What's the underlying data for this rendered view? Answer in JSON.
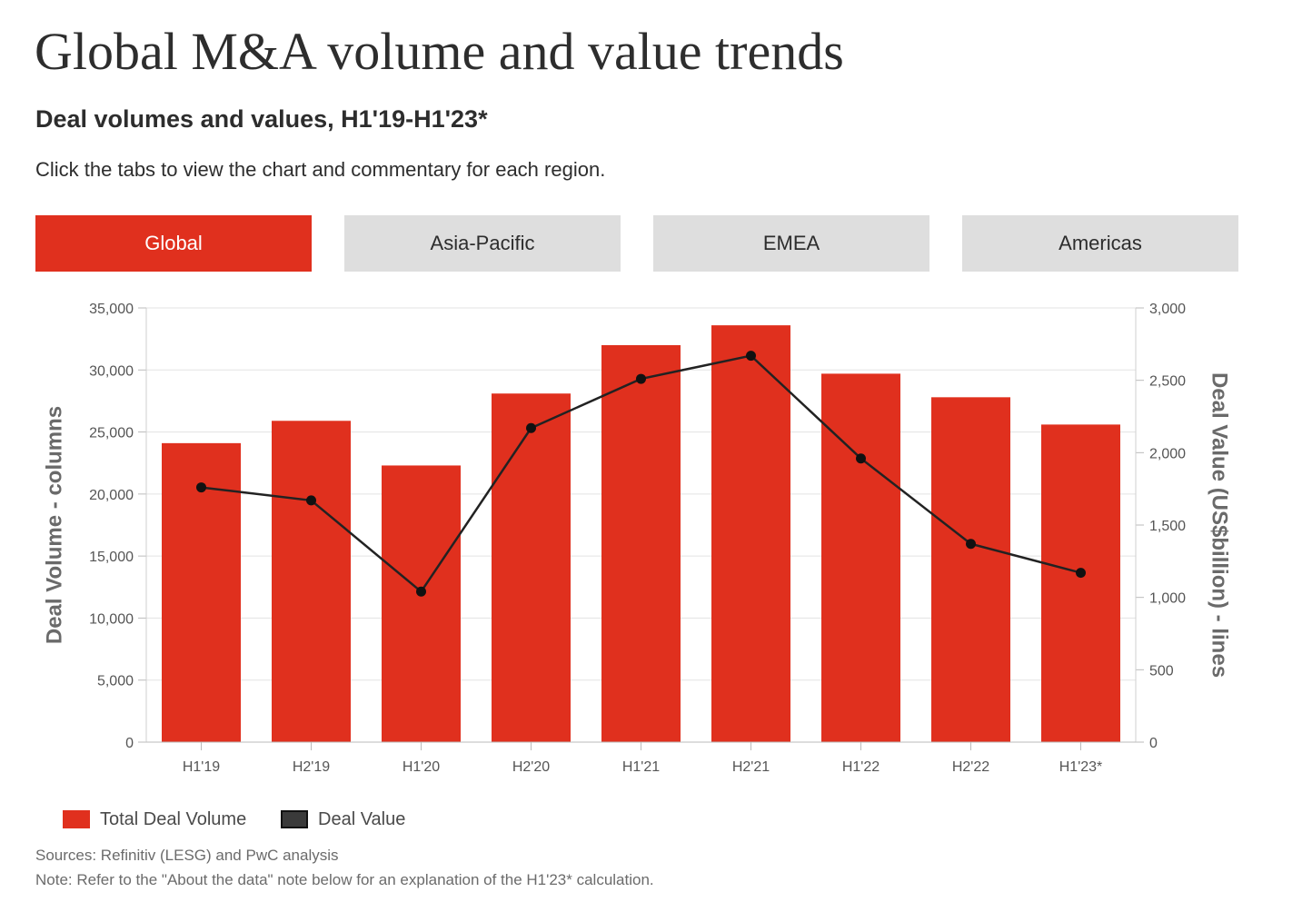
{
  "header": {
    "title": "Global M&A volume and value trends",
    "subtitle": "Deal volumes and values, H1'19-H1'23*",
    "instructions": "Click the tabs to view the chart and commentary for each region."
  },
  "tabs": [
    {
      "label": "Global",
      "active": true
    },
    {
      "label": "Asia-Pacific",
      "active": false
    },
    {
      "label": "EMEA",
      "active": false
    },
    {
      "label": "Americas",
      "active": false
    }
  ],
  "colors": {
    "accent": "#e0301e",
    "tab_inactive": "#dedede",
    "line": "#222222",
    "grid": "#e3e3e3"
  },
  "chart_data": {
    "type": "bar",
    "categories": [
      "H1'19",
      "H2'19",
      "H1'20",
      "H2'20",
      "H1'21",
      "H2'21",
      "H1'22",
      "H2'22",
      "H1'23*"
    ],
    "series": [
      {
        "name": "Total Deal Volume",
        "chart_type": "bar",
        "axis": "left",
        "color": "#e0301e",
        "values": [
          24100,
          25900,
          22300,
          28100,
          32000,
          33600,
          29700,
          27800,
          25600
        ]
      },
      {
        "name": "Deal Value",
        "chart_type": "line",
        "axis": "right",
        "color": "#222222",
        "values": [
          1760,
          1670,
          1040,
          2170,
          2510,
          2670,
          1960,
          1370,
          1170
        ]
      }
    ],
    "y_left": {
      "label": "Deal Volume - columns",
      "min": 0,
      "max": 35000,
      "ticks": [
        0,
        5000,
        10000,
        15000,
        20000,
        25000,
        30000,
        35000
      ],
      "tick_labels": [
        "0",
        "5,000",
        "10,000",
        "15,000",
        "20,000",
        "25,000",
        "30,000",
        "35,000"
      ]
    },
    "y_right": {
      "label": "Deal Value (US$billion) - lines",
      "min": 0,
      "max": 3000,
      "ticks": [
        0,
        500,
        1000,
        1500,
        2000,
        2500,
        3000
      ],
      "tick_labels": [
        "0",
        "500",
        "1,000",
        "1,500",
        "2,000",
        "2,500",
        "3,000"
      ]
    },
    "grid": true,
    "legend_position": "bottom-left"
  },
  "legend": [
    {
      "label": "Total Deal Volume"
    },
    {
      "label": "Deal Value"
    }
  ],
  "footer": {
    "sources": "Sources: Refinitiv (LESG) and PwC analysis",
    "note": "Note: Refer to the \"About the data\" note below for an explanation of the H1'23* calculation."
  }
}
